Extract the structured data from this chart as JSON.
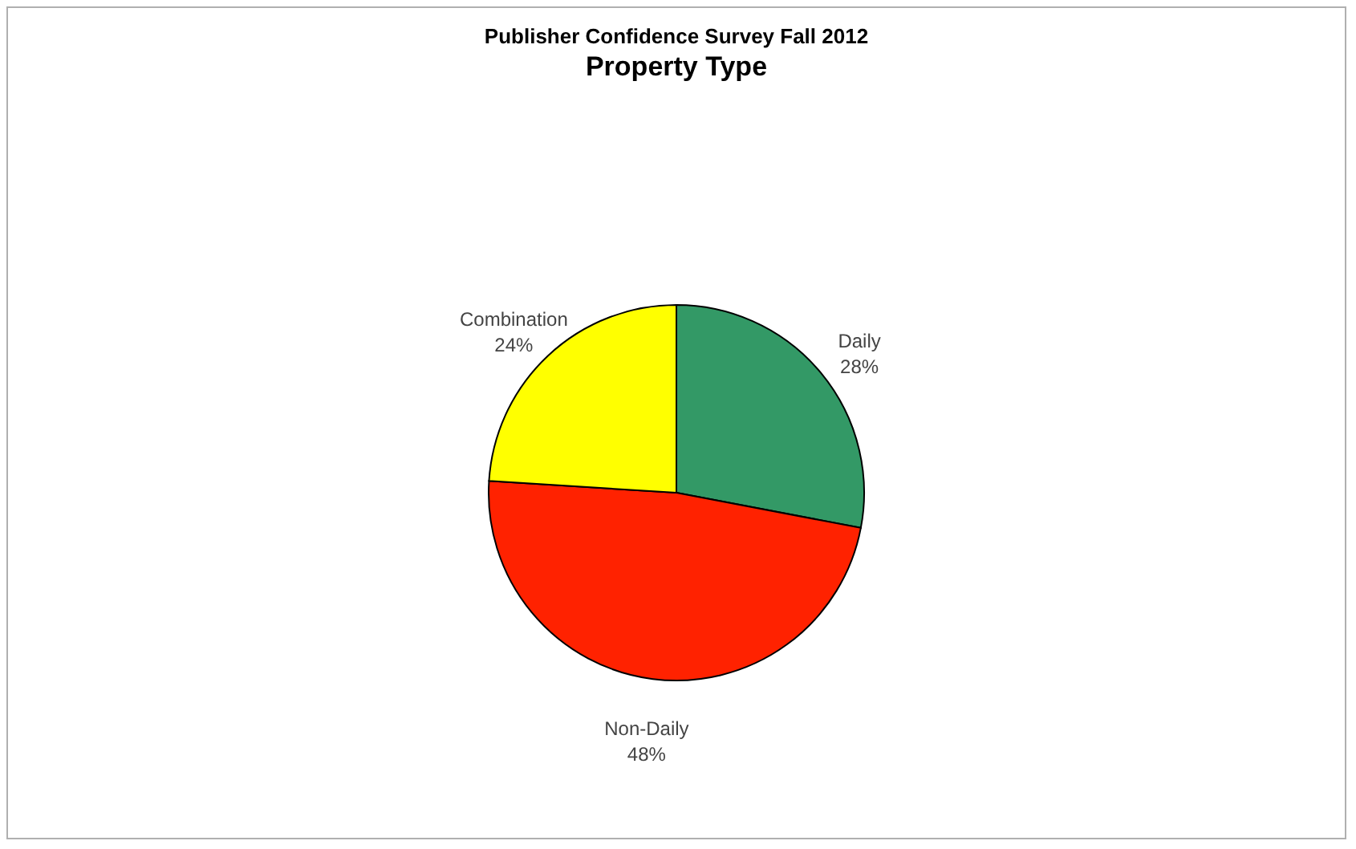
{
  "chart_data": {
    "type": "pie",
    "title": "Publisher Confidence Survey Fall 2012",
    "subtitle": "Property Type",
    "categories": [
      "Daily",
      "Non-Daily",
      "Combination"
    ],
    "values": [
      28,
      48,
      24
    ],
    "value_labels": [
      "28%",
      "48%",
      "24%"
    ],
    "colors": [
      "#339966",
      "#ff2200",
      "#ffff00"
    ],
    "legend": false
  }
}
